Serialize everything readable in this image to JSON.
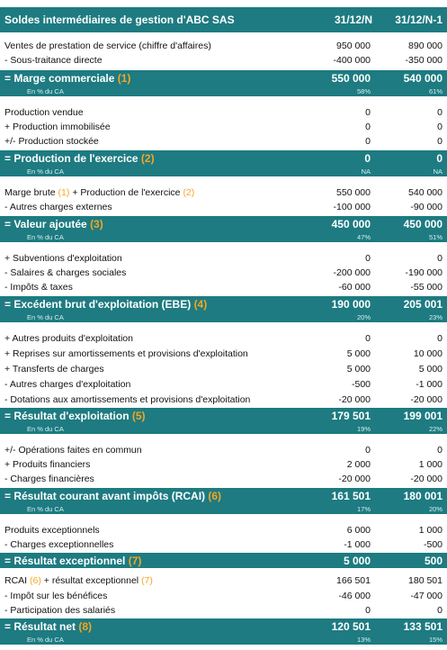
{
  "header": {
    "title": "Soldes intermédiaires de gestion d'ABC SAS",
    "col_n": "31/12/N",
    "col_n1": "31/12/N-1"
  },
  "sections": {
    "s1": {
      "lines": [
        {
          "label": "Ventes de prestation de service (chiffre d'affaires)",
          "n": "950 000",
          "n1": "890 000"
        },
        {
          "label": "- Sous-traitance directe",
          "n": "-400 000",
          "n1": "-350 000"
        }
      ],
      "total": {
        "label": "= Marge commerciale",
        "num": "(1)",
        "n": "550 000",
        "n1": "540 000"
      },
      "pct": {
        "label": "En % du CA",
        "n": "58%",
        "n1": "61%"
      }
    },
    "s2": {
      "lines": [
        {
          "label": "Production vendue",
          "n": "0",
          "n1": "0"
        },
        {
          "label": "+ Production immobilisée",
          "n": "0",
          "n1": "0"
        },
        {
          "label": "+/- Production stockée",
          "n": "0",
          "n1": "0"
        }
      ],
      "total": {
        "label": "= Production de l'exercice",
        "num": "(2)",
        "n": "0",
        "n1": "0"
      },
      "pct": {
        "label": "En % du CA",
        "n": "NA",
        "n1": "NA"
      }
    },
    "s3": {
      "line1": {
        "a": "Marge brute",
        "na": "(1)",
        "b": "+ Production de l'exercice",
        "nb": "(2)",
        "n": "550 000",
        "n1": "540 000"
      },
      "lines": [
        {
          "label": "- Autres charges externes",
          "n": "-100 000",
          "n1": "-90 000"
        }
      ],
      "total": {
        "label": "= Valeur ajoutée",
        "num": "(3)",
        "n": "450 000",
        "n1": "450 000"
      },
      "pct": {
        "label": "En % du CA",
        "n": "47%",
        "n1": "51%"
      }
    },
    "s4": {
      "lines": [
        {
          "label": "+ Subventions d'exploitation",
          "n": "0",
          "n1": "0"
        },
        {
          "label": "- Salaires & charges sociales",
          "n": "-200 000",
          "n1": "-190 000"
        },
        {
          "label": "- Impôts & taxes",
          "n": "-60 000",
          "n1": "-55 000"
        }
      ],
      "total": {
        "label": "= Excédent brut d'exploitation (EBE)",
        "num": "(4)",
        "n": "190 000",
        "n1": "205 001"
      },
      "pct": {
        "label": "En % du CA",
        "n": "20%",
        "n1": "23%"
      }
    },
    "s5": {
      "lines": [
        {
          "label": "+ Autres produits d'exploitation",
          "n": "0",
          "n1": "0"
        },
        {
          "label": "+ Reprises sur amortissements et provisions d'exploitation",
          "n": "5 000",
          "n1": "10 000"
        },
        {
          "label": "+ Transferts de charges",
          "n": "5 000",
          "n1": "5 000"
        },
        {
          "label": "- Autres charges d'exploitation",
          "n": "-500",
          "n1": "-1 000"
        },
        {
          "label": "- Dotations aux amortissements et provisions d'exploitation",
          "n": "-20 000",
          "n1": "-20 000"
        }
      ],
      "total": {
        "label": "= Résultat d'exploitation",
        "num": "(5)",
        "n": "179 501",
        "n1": "199 001"
      },
      "pct": {
        "label": "En % du CA",
        "n": "19%",
        "n1": "22%"
      }
    },
    "s6": {
      "lines": [
        {
          "label": "+/- Opérations faites en commun",
          "n": "0",
          "n1": "0"
        },
        {
          "label": "+ Produits financiers",
          "n": "2 000",
          "n1": "1 000"
        },
        {
          "label": "- Charges financières",
          "n": "-20 000",
          "n1": "-20 000"
        }
      ],
      "total": {
        "label": "= Résultat courant avant impôts (RCAI)",
        "num": "(6)",
        "n": "161 501",
        "n1": "180 001"
      },
      "pct": {
        "label": "En % du CA",
        "n": "17%",
        "n1": "20%"
      }
    },
    "s7": {
      "lines": [
        {
          "label": "Produits exceptionnels",
          "n": "6 000",
          "n1": "1 000"
        },
        {
          "label": "- Charges exceptionnelles",
          "n": "-1 000",
          "n1": "-500"
        }
      ],
      "total": {
        "label": "= Résultat exceptionnel",
        "num": "(7)",
        "n": "5 000",
        "n1": "500"
      }
    },
    "s8": {
      "line1": {
        "a": "RCAI",
        "na": "(6)",
        "b": "+ résultat exceptionnel",
        "nb": "(7)",
        "n": "166 501",
        "n1": "180 501"
      },
      "lines": [
        {
          "label": "- Impôt sur les bénéfices",
          "n": "-46 000",
          "n1": "-47 000"
        },
        {
          "label": "- Participation des salariés",
          "n": "0",
          "n1": "0"
        }
      ],
      "total": {
        "label": "= Résultat net",
        "num": "(8)",
        "n": "120 501",
        "n1": "133 501"
      },
      "pct": {
        "label": "En % du CA",
        "n": "13%",
        "n1": "15%"
      }
    }
  }
}
